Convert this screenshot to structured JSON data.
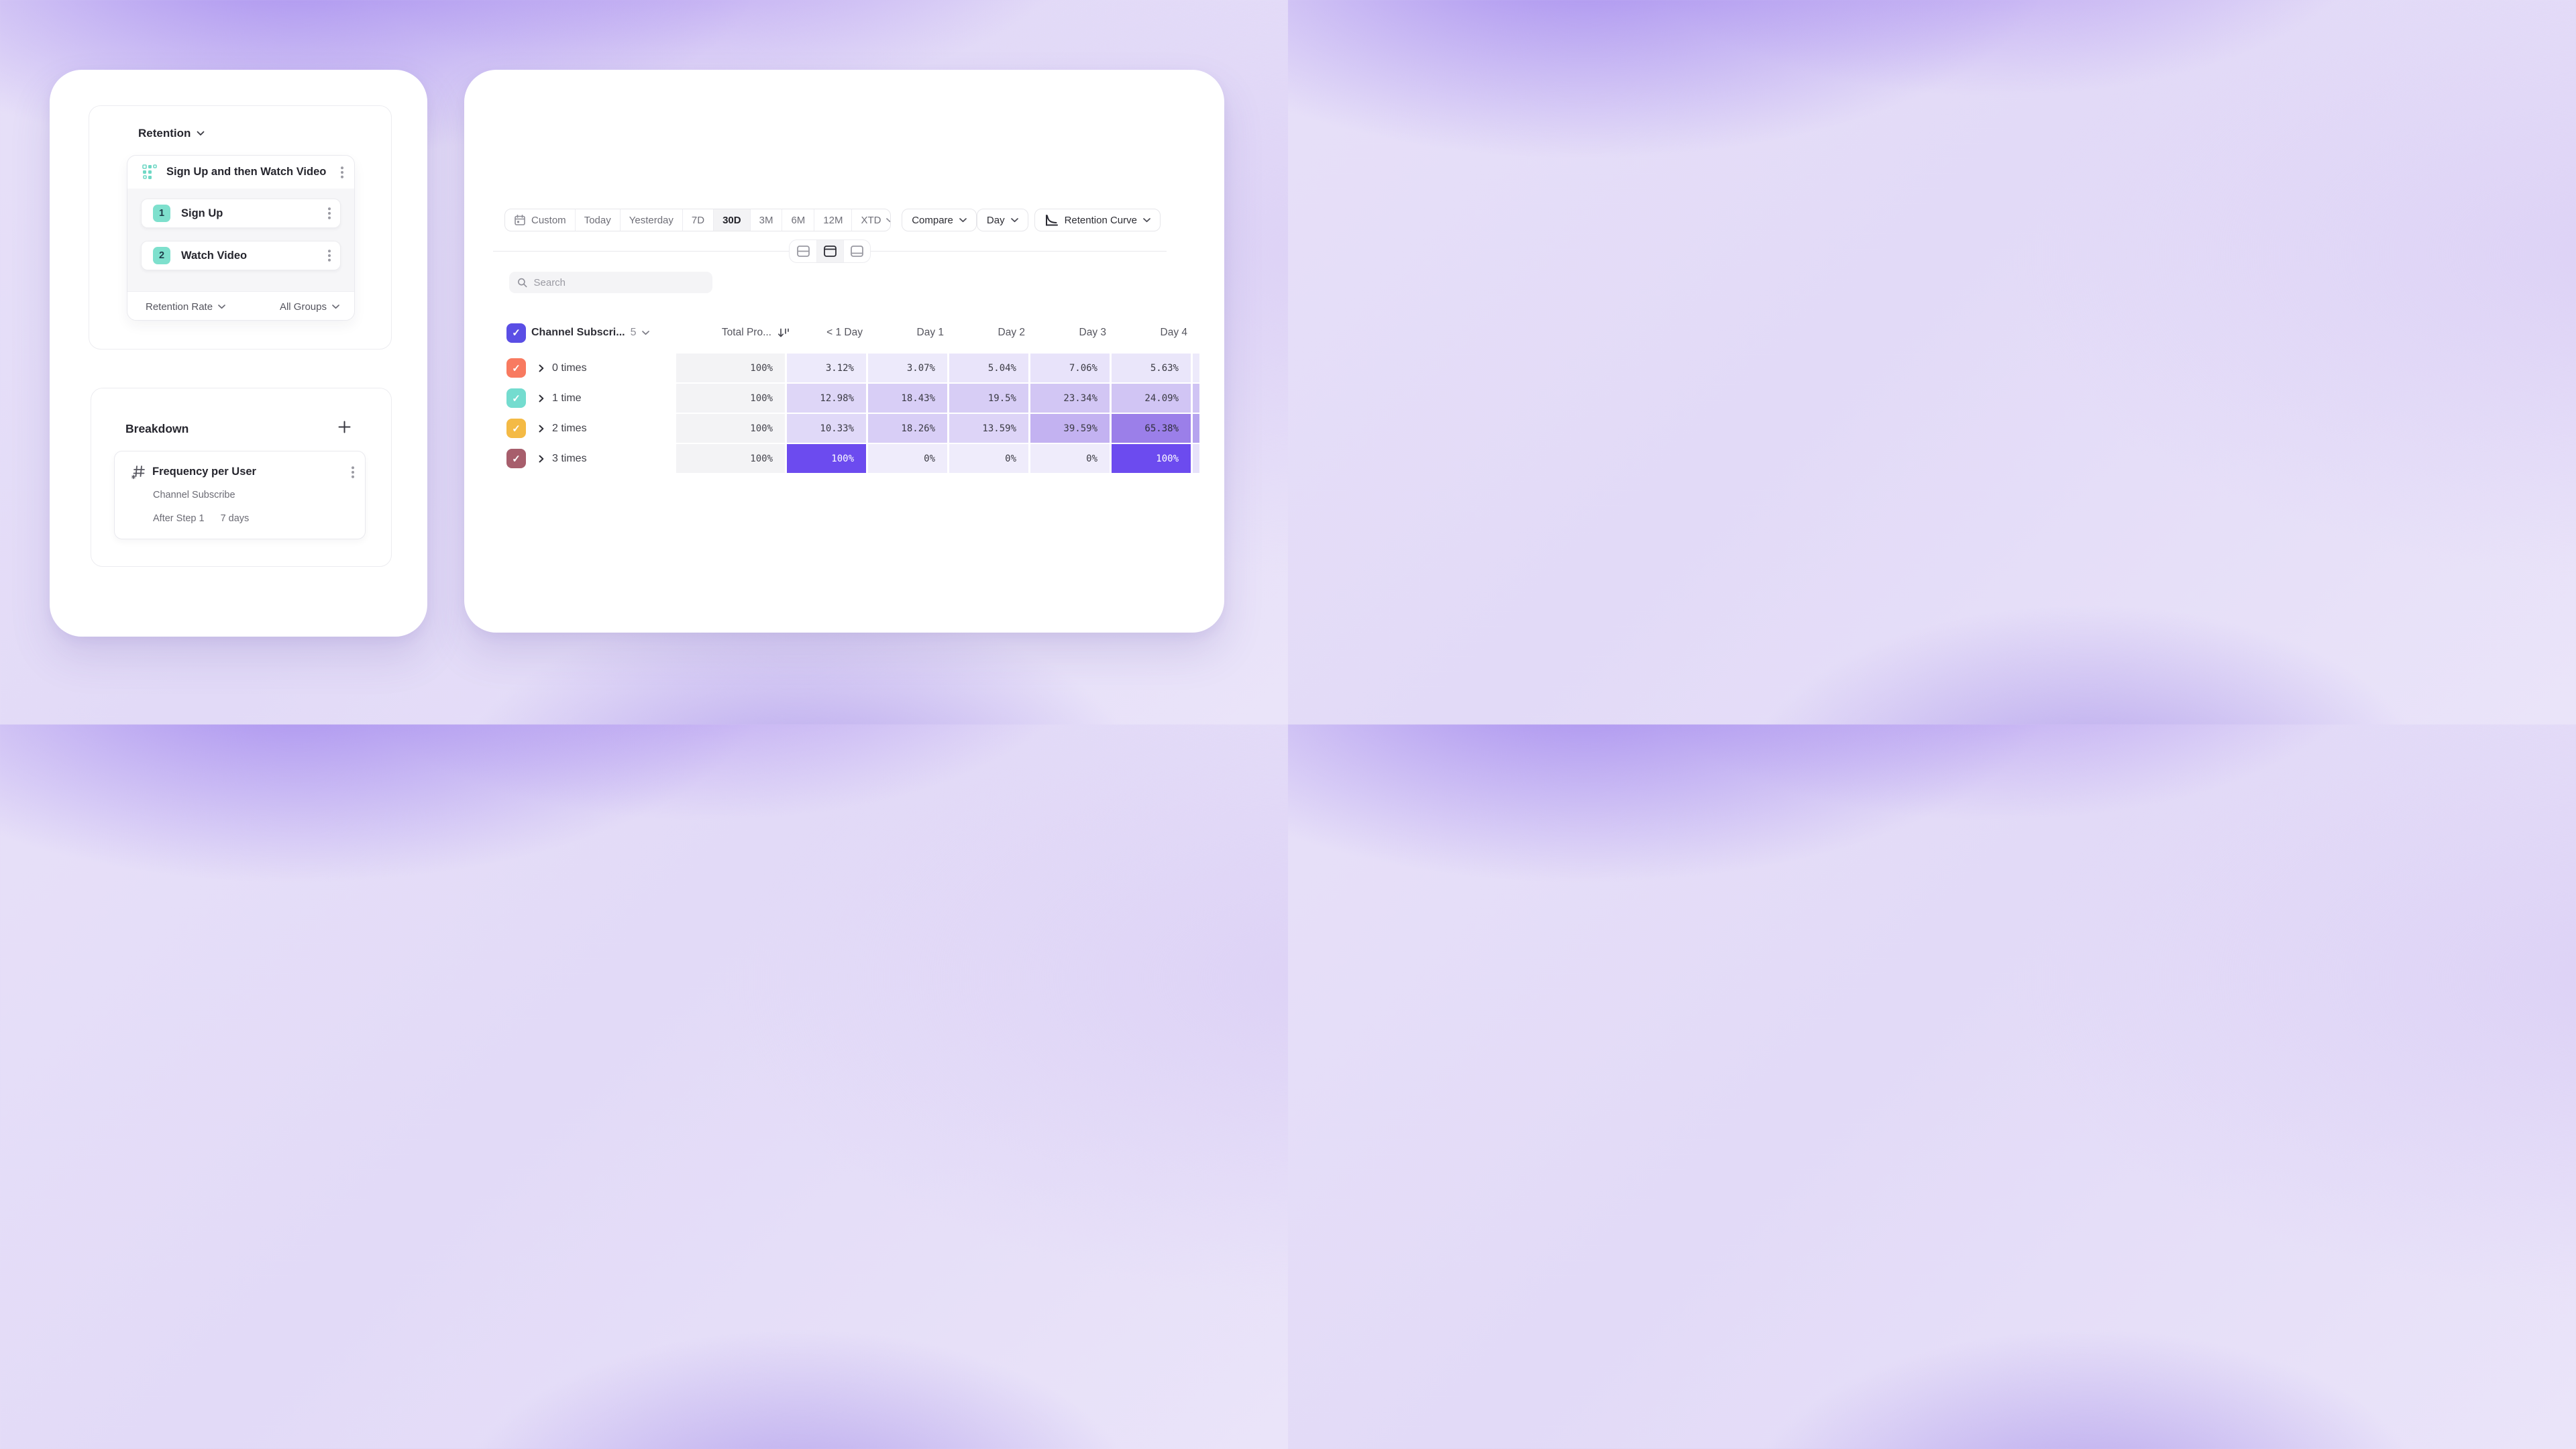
{
  "accent_color": "#5A4EE5",
  "left_card": {
    "retention_panel": {
      "title": "Retention",
      "funnel": {
        "title": "Sign Up and then Watch Video",
        "steps": [
          {
            "number": "1",
            "label": "Sign Up"
          },
          {
            "number": "2",
            "label": "Watch Video"
          }
        ],
        "footer": {
          "metric": "Retention Rate",
          "groups": "All Groups"
        }
      }
    },
    "breakdown_panel": {
      "title": "Breakdown",
      "item": {
        "title": "Frequency per User",
        "event": "Channel Subscribe",
        "after_step": "After Step 1",
        "window": "7 days"
      }
    }
  },
  "right_card": {
    "toolbar": {
      "date_ranges": [
        {
          "label": "Custom",
          "icon": "calendar",
          "active": false,
          "chevron": false
        },
        {
          "label": "Today",
          "active": false,
          "chevron": false
        },
        {
          "label": "Yesterday",
          "active": false,
          "chevron": false
        },
        {
          "label": "7D",
          "active": false,
          "chevron": false
        },
        {
          "label": "30D",
          "active": true,
          "chevron": false
        },
        {
          "label": "3M",
          "active": false,
          "chevron": false
        },
        {
          "label": "6M",
          "active": false,
          "chevron": false
        },
        {
          "label": "12M",
          "active": false,
          "chevron": false
        },
        {
          "label": "XTD",
          "active": false,
          "chevron": true
        }
      ],
      "compare_label": "Compare",
      "granularity_label": "Day",
      "view_label": "Retention Curve"
    },
    "search": {
      "placeholder": "Search"
    },
    "table": {
      "header_checkbox_color": "#5A4EE5",
      "group_header": {
        "label": "Channel Subscri...",
        "count": "5"
      },
      "total_header": "Total Pro...",
      "day_headers": [
        "< 1 Day",
        "Day 1",
        "Day 2",
        "Day 3",
        "Day 4"
      ],
      "total_bg": "#F3F3F5",
      "rows": [
        {
          "checkbox_color": "#F87A60",
          "label": "0 times",
          "total": "100%",
          "cells": [
            {
              "value": "3.12%",
              "bg": "#EDEAFB",
              "fg": "#3A3A43"
            },
            {
              "value": "3.07%",
              "bg": "#EDEAFB",
              "fg": "#3A3A43"
            },
            {
              "value": "5.04%",
              "bg": "#E9E4FA",
              "fg": "#3A3A43"
            },
            {
              "value": "7.06%",
              "bg": "#E8E3FA",
              "fg": "#3A3A43"
            },
            {
              "value": "5.63%",
              "bg": "#EAE6FA",
              "fg": "#3A3A43"
            }
          ],
          "clipped_bg": "#EDEAFB"
        },
        {
          "checkbox_color": "#74DCCF",
          "label": "1 time",
          "total": "100%",
          "cells": [
            {
              "value": "12.98%",
              "bg": "#DED6F7",
              "fg": "#3A3A43"
            },
            {
              "value": "18.43%",
              "bg": "#D8CEF6",
              "fg": "#3A3A43"
            },
            {
              "value": "19.5%",
              "bg": "#D7CDF5",
              "fg": "#3A3A43"
            },
            {
              "value": "23.34%",
              "bg": "#D2C6F4",
              "fg": "#3A3A43"
            },
            {
              "value": "24.09%",
              "bg": "#D1C5F4",
              "fg": "#3A3A43"
            }
          ],
          "clipped_bg": "#D0C4F4"
        },
        {
          "checkbox_color": "#F4BA45",
          "label": "2 times",
          "total": "100%",
          "cells": [
            {
              "value": "10.33%",
              "bg": "#E0D9F8",
              "fg": "#3A3A43"
            },
            {
              "value": "18.26%",
              "bg": "#D8CEF6",
              "fg": "#3A3A43"
            },
            {
              "value": "13.59%",
              "bg": "#DDD4F7",
              "fg": "#3A3A43"
            },
            {
              "value": "39.59%",
              "bg": "#C3B2F1",
              "fg": "#3A3A43"
            },
            {
              "value": "65.38%",
              "bg": "#9B7FE9",
              "fg": "#2E2E38"
            }
          ],
          "clipped_bg": "#B6A4EF"
        },
        {
          "checkbox_color": "#A75E6C",
          "label": "3 times",
          "total": "100%",
          "cells": [
            {
              "value": "100%",
              "bg": "#6C4BEF",
              "fg": "#FFFFFF"
            },
            {
              "value": "0%",
              "bg": "#EFECFB",
              "fg": "#3A3A43"
            },
            {
              "value": "0%",
              "bg": "#EFECFB",
              "fg": "#3A3A43"
            },
            {
              "value": "0%",
              "bg": "#EFECFB",
              "fg": "#3A3A43"
            },
            {
              "value": "100%",
              "bg": "#6C4BEF",
              "fg": "#FFFFFF"
            }
          ],
          "clipped_bg": "#E7E2FA"
        }
      ]
    }
  }
}
